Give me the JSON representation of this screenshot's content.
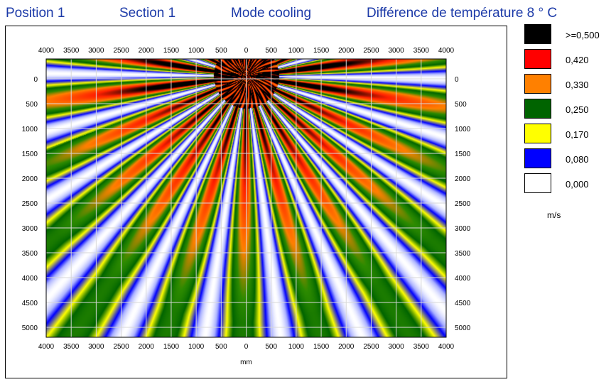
{
  "header": {
    "position": "Position  1",
    "section": "Section  1",
    "mode": "Mode cooling",
    "difference": "Différence de température  8 ° C"
  },
  "legend": {
    "items": [
      {
        "label": ">=0,500",
        "color": "#000000"
      },
      {
        "label": "0,420",
        "color": "#ff0000"
      },
      {
        "label": "0,330",
        "color": "#ff8000"
      },
      {
        "label": "0,250",
        "color": "#006400"
      },
      {
        "label": "0,170",
        "color": "#ffff00"
      },
      {
        "label": "0,080",
        "color": "#0000ff"
      },
      {
        "label": "0,000",
        "color": "#ffffff"
      }
    ],
    "unit": "m/s"
  },
  "chart_data": {
    "type": "heatmap",
    "xlabel": "mm",
    "ylabel": "",
    "x_ticks": [
      4000,
      3500,
      3000,
      2500,
      2000,
      1500,
      1000,
      500,
      0,
      500,
      1000,
      1500,
      2000,
      2500,
      3000,
      3500,
      4000
    ],
    "y_ticks": [
      0,
      500,
      1000,
      1500,
      2000,
      2500,
      3000,
      3500,
      4000,
      4500,
      5000
    ],
    "xlim": [
      -4000,
      4000
    ],
    "ylim": [
      5200,
      -400
    ],
    "x_axis_position": "top and bottom",
    "y_axis_position": "left and right",
    "grid": true,
    "pattern": "radial velocity bands emanating from a source at x=0, y=0",
    "scale_values": [
      0.5,
      0.42,
      0.33,
      0.25,
      0.17,
      0.08,
      0.0
    ],
    "scale_unit": "m/s"
  }
}
